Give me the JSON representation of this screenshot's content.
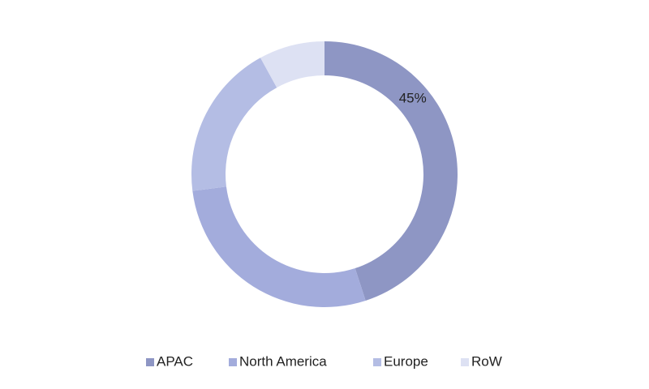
{
  "chart_data": {
    "type": "donut",
    "categories": [
      "APAC",
      "North America",
      "Europe",
      "RoW"
    ],
    "values": [
      45,
      28,
      19,
      8
    ],
    "value_labels": [
      "45%",
      null,
      null,
      null
    ],
    "colors": [
      "#8e96c4",
      "#a3acdc",
      "#b4bde4",
      "#dde1f3"
    ],
    "legend": "bottom"
  }
}
